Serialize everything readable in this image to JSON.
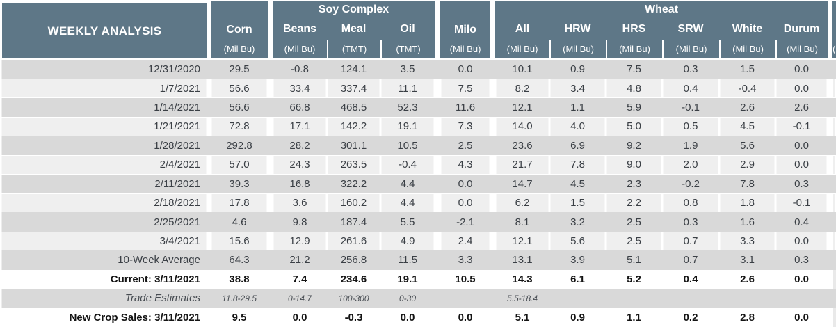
{
  "colors": {
    "header_bg": "#5e7787",
    "header_text": "#ffffff",
    "row_gray": "#d9d9d9",
    "row_light": "#efefef",
    "row_white": "#ffffff",
    "text": "#3a3f45",
    "bold_text": "#141414"
  },
  "chart_data": {
    "type": "table",
    "title": "WEEKLY ANALYSIS",
    "groups": [
      {
        "label": "Soy Complex",
        "columns": [
          "Beans",
          "Meal",
          "Oil"
        ]
      },
      {
        "label": "Wheat",
        "columns": [
          "All",
          "HRW",
          "HRS",
          "SRW",
          "White",
          "Durum"
        ]
      }
    ],
    "columns": [
      {
        "id": "corn",
        "label": "Corn",
        "unit": "(Mil Bu)"
      },
      {
        "id": "beans",
        "label": "Beans",
        "unit": "(Mil Bu)"
      },
      {
        "id": "meal",
        "label": "Meal",
        "unit": "(TMT)"
      },
      {
        "id": "oil",
        "label": "Oil",
        "unit": "(TMT)"
      },
      {
        "id": "milo",
        "label": "Milo",
        "unit": "(Mil Bu)"
      },
      {
        "id": "all",
        "label": "All",
        "unit": "(Mil Bu)"
      },
      {
        "id": "hrw",
        "label": "HRW",
        "unit": "(Mil Bu)"
      },
      {
        "id": "hrs",
        "label": "HRS",
        "unit": "(Mil Bu)"
      },
      {
        "id": "srw",
        "label": "SRW",
        "unit": "(Mil Bu)"
      },
      {
        "id": "white",
        "label": "White",
        "unit": "(Mil Bu)"
      },
      {
        "id": "durum",
        "label": "Durum",
        "unit": "(Mil Bu)"
      }
    ],
    "right_edge_clipped_unit": "(",
    "rows": [
      {
        "label": "12/31/2020",
        "style": "gray",
        "values": [
          "29.5",
          "-0.8",
          "124.1",
          "3.5",
          "0.0",
          "10.1",
          "0.9",
          "7.5",
          "0.3",
          "1.5",
          "0.0"
        ]
      },
      {
        "label": "1/7/2021",
        "style": "light",
        "values": [
          "56.6",
          "33.4",
          "337.4",
          "11.1",
          "7.5",
          "8.2",
          "3.4",
          "4.8",
          "0.4",
          "-0.4",
          "0.0"
        ]
      },
      {
        "label": "1/14/2021",
        "style": "gray",
        "values": [
          "56.6",
          "66.8",
          "468.5",
          "52.3",
          "11.6",
          "12.1",
          "1.1",
          "5.9",
          "-0.1",
          "2.6",
          "2.6"
        ]
      },
      {
        "label": "1/21/2021",
        "style": "light",
        "values": [
          "72.8",
          "17.1",
          "142.2",
          "19.1",
          "7.3",
          "14.0",
          "4.0",
          "5.0",
          "0.5",
          "4.5",
          "-0.1"
        ]
      },
      {
        "label": "1/28/2021",
        "style": "gray",
        "values": [
          "292.8",
          "28.2",
          "301.1",
          "10.5",
          "2.5",
          "23.6",
          "6.9",
          "9.2",
          "1.9",
          "5.6",
          "0.0"
        ]
      },
      {
        "label": "2/4/2021",
        "style": "light",
        "values": [
          "57.0",
          "24.3",
          "263.5",
          "-0.4",
          "4.3",
          "21.7",
          "7.8",
          "9.0",
          "2.0",
          "2.9",
          "0.0"
        ]
      },
      {
        "label": "2/11/2021",
        "style": "gray",
        "values": [
          "39.3",
          "16.8",
          "322.2",
          "4.4",
          "0.0",
          "14.7",
          "4.5",
          "2.3",
          "-0.2",
          "7.8",
          "0.3"
        ]
      },
      {
        "label": "2/18/2021",
        "style": "light",
        "values": [
          "17.8",
          "3.6",
          "160.2",
          "4.4",
          "0.0",
          "6.2",
          "1.5",
          "2.2",
          "0.8",
          "1.8",
          "-0.1"
        ]
      },
      {
        "label": "2/25/2021",
        "style": "gray",
        "values": [
          "4.6",
          "9.8",
          "187.4",
          "5.5",
          "-2.1",
          "8.1",
          "3.2",
          "2.5",
          "0.3",
          "1.6",
          "0.4"
        ]
      },
      {
        "label": "3/4/2021",
        "style": "underline",
        "values": [
          "15.6",
          "12.9",
          "261.6",
          "4.9",
          "2.4",
          "12.1",
          "5.6",
          "2.5",
          "0.7",
          "3.3",
          "0.0"
        ]
      },
      {
        "label": "10-Week Average",
        "style": "gray",
        "values": [
          "64.3",
          "21.2",
          "256.8",
          "11.5",
          "3.3",
          "13.1",
          "3.9",
          "5.1",
          "0.7",
          "3.1",
          "0.3"
        ]
      },
      {
        "label": "Current: 3/11/2021",
        "style": "bold",
        "values": [
          "38.8",
          "7.4",
          "234.6",
          "19.1",
          "10.5",
          "14.3",
          "6.1",
          "5.2",
          "0.4",
          "2.6",
          "0.0"
        ]
      },
      {
        "label": "Trade Estimates",
        "style": "estimates",
        "values": [
          "11.8-29.5",
          "0-14.7",
          "100-300",
          "0-30",
          "",
          "5.5-18.4",
          "",
          "",
          "",
          "",
          ""
        ]
      },
      {
        "label": "New Crop Sales: 3/11/2021",
        "style": "bold",
        "values": [
          "9.5",
          "0.0",
          "-0.3",
          "0.0",
          "0.0",
          "5.1",
          "0.9",
          "1.1",
          "0.2",
          "2.8",
          "0.0"
        ]
      }
    ]
  }
}
